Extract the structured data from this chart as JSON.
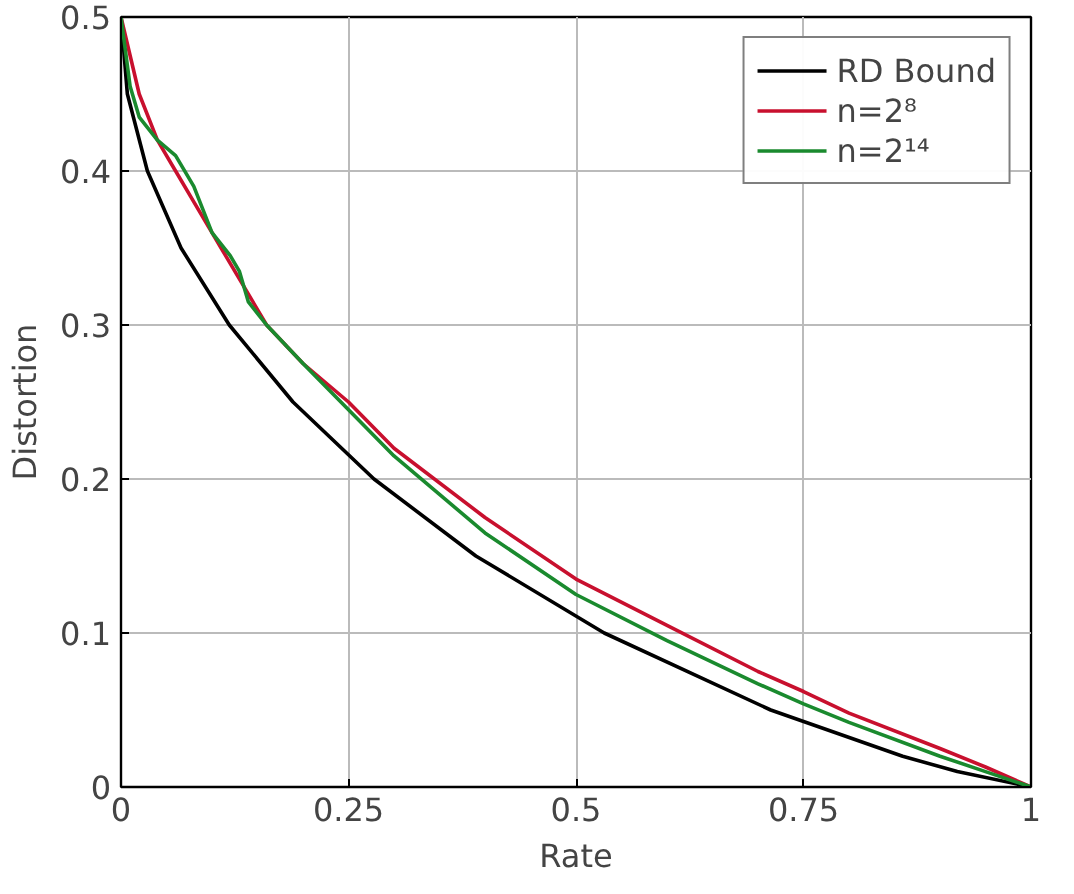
{
  "chart_data": {
    "type": "line",
    "xlabel": "Rate",
    "ylabel": "Distortion",
    "xlim": [
      0,
      1
    ],
    "ylim": [
      0,
      0.5
    ],
    "xticks": [
      0,
      0.25,
      0.5,
      0.75,
      1
    ],
    "yticks": [
      0,
      0.1,
      0.2,
      0.3,
      0.4,
      0.5
    ],
    "grid": true,
    "legend": "top right",
    "line_style": "solid",
    "marker": "none",
    "series": [
      {
        "name": "RD Bound",
        "color": "#000000",
        "x": [
          0,
          0.007,
          0.029,
          0.066,
          0.119,
          0.189,
          0.278,
          0.39,
          0.531,
          0.714,
          0.859,
          0.919,
          1
        ],
        "values": [
          0.5,
          0.45,
          0.4,
          0.35,
          0.3,
          0.25,
          0.2,
          0.15,
          0.1,
          0.05,
          0.02,
          0.01,
          0
        ]
      },
      {
        "name": "n=2⁸",
        "color": "#c8102e",
        "x": [
          0,
          0.01,
          0.02,
          0.04,
          0.06,
          0.08,
          0.11,
          0.14,
          0.16,
          0.2,
          0.25,
          0.3,
          0.4,
          0.5,
          0.6,
          0.7,
          0.75,
          0.8,
          0.9,
          0.95,
          1
        ],
        "values": [
          0.5,
          0.475,
          0.45,
          0.42,
          0.4,
          0.38,
          0.35,
          0.32,
          0.3,
          0.275,
          0.25,
          0.22,
          0.175,
          0.135,
          0.105,
          0.075,
          0.062,
          0.048,
          0.025,
          0.013,
          0
        ]
      },
      {
        "name": "n=2¹⁴",
        "color": "#1a8a2e",
        "x": [
          0,
          0.01,
          0.02,
          0.04,
          0.06,
          0.08,
          0.1,
          0.12,
          0.13,
          0.14,
          0.16,
          0.2,
          0.25,
          0.3,
          0.4,
          0.5,
          0.6,
          0.7,
          0.75,
          0.8,
          0.9,
          0.95,
          1
        ],
        "values": [
          0.5,
          0.455,
          0.435,
          0.42,
          0.41,
          0.39,
          0.36,
          0.345,
          0.335,
          0.315,
          0.3,
          0.275,
          0.245,
          0.215,
          0.165,
          0.125,
          0.095,
          0.067,
          0.054,
          0.042,
          0.02,
          0.01,
          0
        ]
      }
    ]
  }
}
